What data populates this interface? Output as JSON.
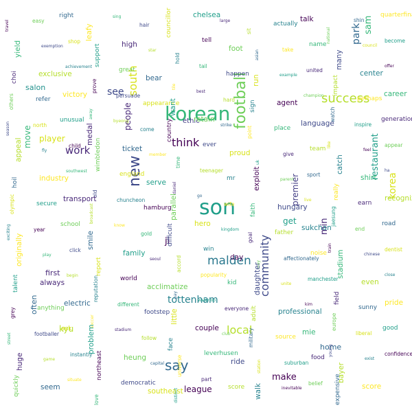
{
  "words": [
    {
      "t": "son",
      "s": 30,
      "c": "#1f9e89"
    },
    {
      "t": "korean",
      "s": 28,
      "c": "#35b779"
    },
    {
      "t": "football",
      "s": 22,
      "c": "#6ece58",
      "v": true
    },
    {
      "t": "new",
      "s": 22,
      "c": "#3e4989",
      "v": true
    },
    {
      "t": "say",
      "s": 20,
      "c": "#31688e"
    },
    {
      "t": "success",
      "s": 18,
      "c": "#b5de2b"
    },
    {
      "t": "malden",
      "s": 17,
      "c": "#2a788e"
    },
    {
      "t": "community",
      "s": 16,
      "c": "#3e4989",
      "v": true
    },
    {
      "t": "local",
      "s": 16,
      "c": "#b5de2b"
    },
    {
      "t": "south",
      "s": 16,
      "c": "#d8e219",
      "v": true
    },
    {
      "t": "think",
      "s": 16,
      "c": "#440154"
    },
    {
      "t": "work",
      "s": 15,
      "c": "#482878"
    },
    {
      "t": "tottenham",
      "s": 14,
      "c": "#26828e"
    },
    {
      "t": "park",
      "s": 14,
      "c": "#31688e",
      "v": true
    },
    {
      "t": "korea",
      "s": 14,
      "c": "#d8e219",
      "v": true
    },
    {
      "t": "see",
      "s": 14,
      "c": "#3e4989"
    },
    {
      "t": "restaurant",
      "s": 13,
      "c": "#1f9e89",
      "v": true
    },
    {
      "t": "min",
      "s": 13,
      "c": "#482878",
      "v": true
    },
    {
      "t": "make",
      "s": 13,
      "c": "#440154"
    },
    {
      "t": "sam",
      "s": 13,
      "c": "#35b779",
      "v": true
    },
    {
      "t": "ji",
      "s": 13,
      "c": "#440154"
    },
    {
      "t": "league",
      "s": 12,
      "c": "#440154"
    },
    {
      "t": "premier",
      "s": 12,
      "c": "#433e85",
      "v": true
    },
    {
      "t": "people",
      "s": 12,
      "c": "#482878",
      "v": true
    },
    {
      "t": "kyu",
      "s": 12,
      "c": "#b5de2b"
    },
    {
      "t": "get",
      "s": 12,
      "c": "#1f9e89"
    },
    {
      "t": "player",
      "s": 12,
      "c": "#d8e219"
    },
    {
      "t": "move",
      "s": 12,
      "c": "#35b779",
      "v": true
    },
    {
      "t": "first",
      "s": 11,
      "c": "#482878"
    },
    {
      "t": "home",
      "s": 11,
      "c": "#31688e"
    },
    {
      "t": "salon",
      "s": 11,
      "c": "#21918c"
    },
    {
      "t": "often",
      "s": 11,
      "c": "#31688e",
      "v": true
    },
    {
      "t": "ethic",
      "s": 10,
      "c": "#433e85"
    },
    {
      "t": "community-spacer",
      "s": 0,
      "c": "#ffffff"
    }
  ],
  "small": [
    "travel",
    "easy",
    "right",
    "leafy",
    "sing",
    "hair",
    "councillor",
    "chelsea",
    "large",
    "sit",
    "actually",
    "talk",
    "national",
    "shin",
    "quarterfinal",
    "yield",
    "exemption",
    "shop",
    "support",
    "high",
    "star",
    "hold",
    "tell",
    "foot",
    "asian",
    "take",
    "name",
    "many",
    "council",
    "become",
    "choi",
    "exclusive",
    "achievement",
    "prove",
    "great",
    "bear",
    "tile",
    "tail",
    "happen",
    "run",
    "example",
    "united",
    "impact",
    "center",
    "offer",
    "others",
    "refer",
    "victory",
    "away",
    "persuade",
    "appearance",
    "want",
    "best",
    "hard",
    "sign",
    "agent",
    "champion",
    "watch",
    "perhaps",
    "career",
    "season",
    "north",
    "unusual",
    "medal",
    "byeong",
    "come",
    "country",
    "retain",
    "strike",
    "point",
    "place",
    "language",
    "like",
    "inspire",
    "generation",
    "appeal",
    "fly",
    "child",
    "wimbledon",
    "ticket",
    "member",
    "time",
    "ever",
    "proud",
    "uk",
    "give",
    "team",
    "catch",
    "feel",
    "appear",
    "hoil",
    "industry",
    "southwest",
    "old",
    "england",
    "serve",
    "daniel",
    "teenager",
    "mr",
    "exploit",
    "parent",
    "sport",
    "really",
    "shirt",
    "ha",
    "olympic",
    "secure",
    "transport",
    "broadcast",
    "chuncheon",
    "hamburg",
    "parallel",
    "go",
    "wife",
    "faith",
    "hungary",
    "live",
    "jaesung",
    "earn",
    "recognizable",
    "exciting",
    "year",
    "school",
    "smile",
    "know",
    "gold",
    "difficult",
    "hero",
    "kingdom",
    "goal",
    "father",
    "sukchan",
    "train",
    "end",
    "road",
    "originally",
    "play",
    "click",
    "report",
    "family",
    "seoul",
    "accord",
    "win",
    "day",
    "may",
    "affectionately",
    "noise",
    "stadium",
    "chinese",
    "dentist",
    "talent",
    "always",
    "begin",
    "reputation",
    "world",
    "acclimatize",
    "pay",
    "popularity",
    "kid",
    "daughter",
    "unite",
    "manchester",
    "field",
    "even",
    "close",
    "grey",
    "anything",
    "electric",
    "soccer",
    "different",
    "footstep",
    "little",
    "waterloo",
    "everyone",
    "adult",
    "professional",
    "kim",
    "europe",
    "sunny",
    "pride",
    "street",
    "footballer",
    "ask",
    "problem",
    "stadium",
    "follow",
    "face",
    "couple",
    "club",
    "military",
    "source",
    "mie",
    "young",
    "liberal",
    "good",
    "huge",
    "game",
    "instantly",
    "northeast",
    "heung",
    "capital",
    "universe",
    "leverhusen",
    "ride",
    "station",
    "suburban",
    "food",
    "bayer",
    "exist",
    "confidence",
    "quickly",
    "seem",
    "situate",
    "love",
    "democratic",
    "southeast",
    "distinct",
    "part",
    "score",
    "walk",
    "inevitable",
    "belief",
    "expensive",
    "score"
  ]
}
